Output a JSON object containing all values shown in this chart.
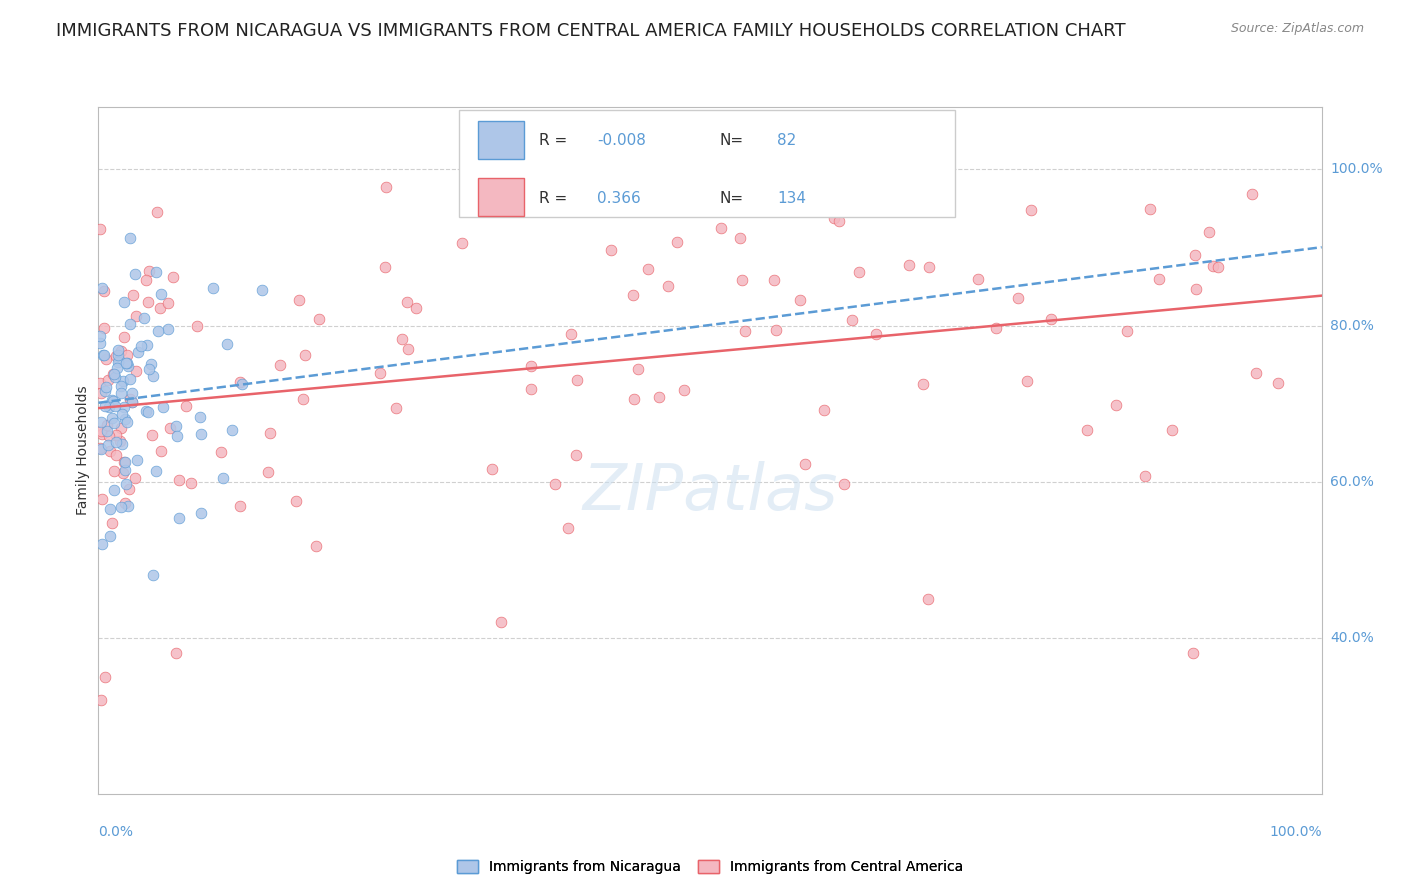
{
  "title": "IMMIGRANTS FROM NICARAGUA VS IMMIGRANTS FROM CENTRAL AMERICA FAMILY HOUSEHOLDS CORRELATION CHART",
  "source": "Source: ZipAtlas.com",
  "ylabel": "Family Households",
  "series": [
    {
      "name": "Immigrants from Nicaragua",
      "color": "#aec6e8",
      "edge_color": "#5b9bd5",
      "R": -0.008,
      "N": 82,
      "trend_color": "#5b9bd5",
      "trend_style": "--"
    },
    {
      "name": "Immigrants from Central America",
      "color": "#f4b8c1",
      "edge_color": "#e8636a",
      "R": 0.366,
      "N": 134,
      "trend_color": "#e8636a",
      "trend_style": "-"
    }
  ],
  "yticks": [
    0.4,
    0.6,
    0.8,
    1.0
  ],
  "ytick_labels": [
    "40.0%",
    "60.0%",
    "80.0%",
    "100.0%"
  ],
  "ylim": [
    0.2,
    1.08
  ],
  "xlim": [
    0.0,
    1.0
  ],
  "background_color": "#ffffff",
  "grid_color": "#d0d0d0",
  "watermark": "ZIPatlas",
  "title_fontsize": 13,
  "legend_r1": "-0.008",
  "legend_r2": "0.366",
  "legend_n1": "82",
  "legend_n2": "134"
}
